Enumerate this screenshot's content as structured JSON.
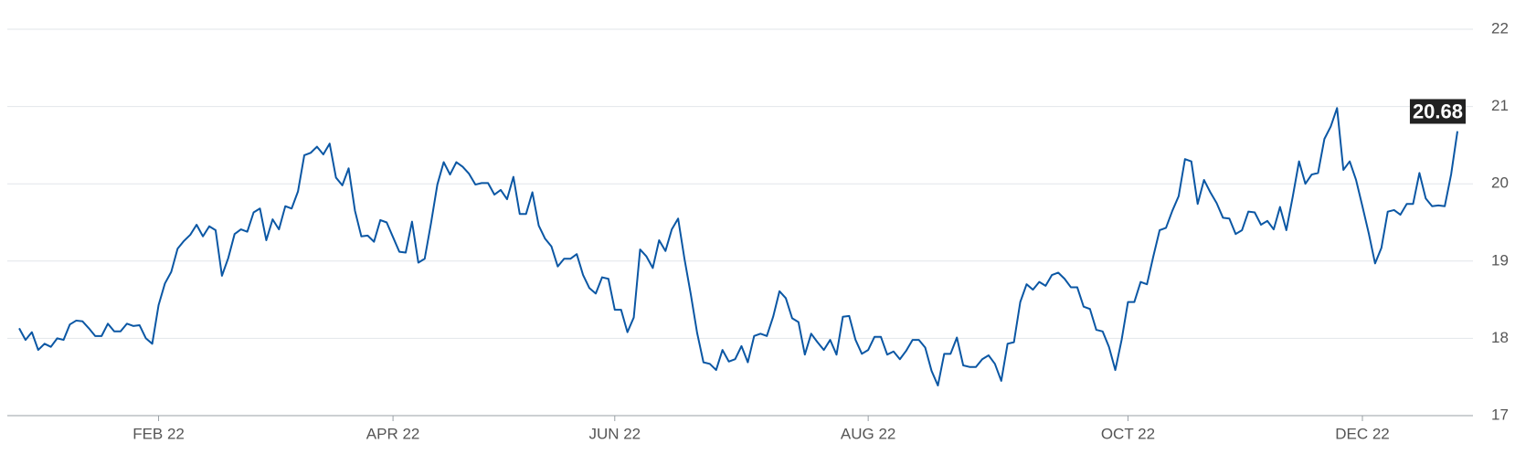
{
  "chart_data": {
    "type": "line",
    "color": "#0b57a4",
    "grid": true,
    "axis_side": "right",
    "ylim": [
      17,
      22
    ],
    "yticks": [
      17,
      18,
      19,
      20,
      21,
      22
    ],
    "categories": [
      null,
      null,
      null,
      null,
      null,
      null,
      null,
      null,
      null,
      null,
      null,
      null,
      null,
      null,
      null,
      null,
      null,
      null,
      null,
      null,
      null,
      null,
      "FEB 22",
      null,
      null,
      null,
      null,
      null,
      null,
      null,
      null,
      null,
      null,
      null,
      null,
      null,
      null,
      null,
      null,
      null,
      null,
      null,
      null,
      null,
      null,
      null,
      null,
      null,
      null,
      null,
      null,
      null,
      null,
      null,
      null,
      null,
      null,
      null,
      null,
      "APR 22",
      null,
      null,
      null,
      null,
      null,
      null,
      null,
      null,
      null,
      null,
      null,
      null,
      null,
      null,
      null,
      null,
      null,
      null,
      null,
      null,
      null,
      null,
      null,
      null,
      null,
      null,
      null,
      null,
      null,
      null,
      null,
      null,
      null,
      null,
      "JUN 22",
      null,
      null,
      null,
      null,
      null,
      null,
      null,
      null,
      null,
      null,
      null,
      null,
      null,
      null,
      null,
      null,
      null,
      null,
      null,
      null,
      null,
      null,
      null,
      null,
      null,
      null,
      null,
      null,
      null,
      null,
      null,
      null,
      null,
      null,
      null,
      null,
      null,
      null,
      null,
      "AUG 22",
      null,
      null,
      null,
      null,
      null,
      null,
      null,
      null,
      null,
      null,
      null,
      null,
      null,
      null,
      null,
      null,
      null,
      null,
      null,
      null,
      null,
      null,
      null,
      null,
      null,
      null,
      null,
      null,
      null,
      null,
      null,
      null,
      null,
      null,
      null,
      null,
      null,
      null,
      null,
      null,
      "OCT 22",
      null,
      null,
      null,
      null,
      null,
      null,
      null,
      null,
      null,
      null,
      null,
      null,
      null,
      null,
      null,
      null,
      null,
      null,
      null,
      null,
      null,
      null,
      null,
      null,
      null,
      null,
      null,
      null,
      null,
      null,
      null,
      null,
      null,
      null,
      null,
      null,
      "DEC 22",
      null,
      null,
      null,
      null,
      null,
      null,
      null,
      null,
      null,
      null,
      null,
      null,
      null,
      null,
      null
    ],
    "values": [
      18.13,
      17.98,
      18.08,
      17.85,
      17.93,
      17.89,
      18.0,
      17.98,
      18.18,
      18.23,
      18.22,
      18.13,
      18.03,
      18.03,
      18.19,
      18.09,
      18.09,
      18.19,
      18.16,
      18.17,
      18.0,
      17.93,
      18.43,
      18.71,
      18.86,
      19.16,
      19.26,
      19.34,
      19.47,
      19.32,
      19.45,
      19.4,
      18.81,
      19.04,
      19.35,
      19.41,
      19.38,
      19.63,
      19.68,
      19.27,
      19.54,
      19.41,
      19.71,
      19.68,
      19.9,
      20.37,
      20.4,
      20.48,
      20.38,
      20.52,
      20.08,
      19.98,
      20.2,
      19.65,
      19.32,
      19.33,
      19.25,
      19.53,
      19.5,
      19.31,
      19.12,
      19.11,
      19.51,
      18.98,
      19.03,
      19.49,
      19.99,
      20.28,
      20.12,
      20.28,
      20.22,
      20.13,
      19.99,
      20.01,
      20.01,
      19.86,
      19.92,
      19.8,
      20.09,
      19.61,
      19.61,
      19.89,
      19.46,
      19.29,
      19.19,
      18.93,
      19.03,
      19.03,
      19.09,
      18.82,
      18.65,
      18.58,
      18.79,
      18.77,
      18.37,
      18.37,
      18.08,
      18.27,
      19.15,
      19.06,
      18.91,
      19.27,
      19.13,
      19.41,
      19.55,
      19.03,
      18.57,
      18.07,
      17.69,
      17.67,
      17.59,
      17.85,
      17.7,
      17.73,
      17.9,
      17.69,
      18.03,
      18.06,
      18.03,
      18.28,
      18.61,
      18.52,
      18.26,
      18.21,
      17.79,
      18.06,
      17.95,
      17.85,
      17.98,
      17.79,
      18.28,
      18.29,
      17.98,
      17.8,
      17.85,
      18.02,
      18.02,
      17.79,
      17.83,
      17.73,
      17.84,
      17.98,
      17.98,
      17.88,
      17.58,
      17.39,
      17.8,
      17.8,
      18.01,
      17.65,
      17.63,
      17.63,
      17.73,
      17.78,
      17.67,
      17.45,
      17.93,
      17.95,
      18.47,
      18.7,
      18.63,
      18.73,
      18.68,
      18.82,
      18.85,
      18.77,
      18.66,
      18.66,
      18.41,
      18.38,
      18.11,
      18.09,
      17.89,
      17.59,
      17.98,
      18.47,
      18.47,
      18.73,
      18.7,
      19.06,
      19.4,
      19.43,
      19.65,
      19.84,
      20.32,
      20.29,
      19.74,
      20.05,
      19.89,
      19.75,
      19.56,
      19.55,
      19.35,
      19.4,
      19.64,
      19.63,
      19.47,
      19.52,
      19.41,
      19.7,
      19.4,
      19.83,
      20.29,
      20.0,
      20.12,
      20.14,
      20.58,
      20.74,
      20.98,
      20.18,
      20.29,
      20.05,
      19.71,
      19.36,
      18.97,
      19.17,
      19.64,
      19.66,
      19.6,
      19.74,
      19.74,
      20.14,
      19.81,
      19.71,
      19.72,
      19.71,
      20.12,
      20.68
    ]
  }
}
